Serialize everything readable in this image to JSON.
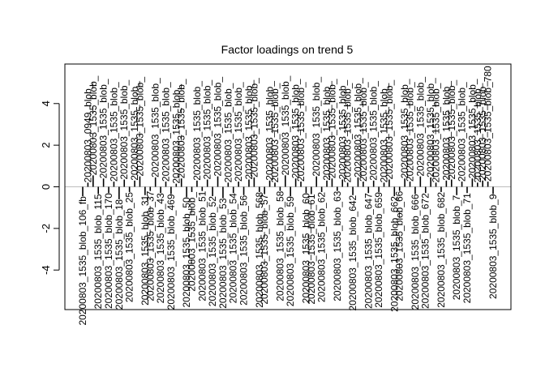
{
  "chart_data": {
    "type": "bar",
    "title": "Factor loadings on trend 5",
    "xlabel": "",
    "ylabel": "",
    "ylim": [
      -5.9,
      5.9
    ],
    "yticks": [
      -4,
      -2,
      0,
      2,
      4
    ],
    "zero_line": true,
    "grid": false,
    "label_template": "20200803_1535_blob_",
    "values": [
      -0.45,
      0.2,
      0.55,
      -0.35,
      0.4,
      -0.3,
      0.25,
      -0.6,
      0.35,
      -0.25,
      0.3,
      0.5,
      -0.4,
      -0.2,
      0.45,
      -0.3,
      0.25,
      -0.35,
      0.15,
      0.4,
      -0.5,
      -0.25,
      0.3,
      -0.2,
      0.35,
      -0.45,
      0.5,
      -0.55,
      0.2,
      -0.3,
      0.25,
      -0.4,
      0.35,
      0.45,
      -0.25,
      -0.35,
      0.3,
      0.2,
      -0.2,
      0.55,
      -0.45,
      0.4,
      0.25,
      -0.3,
      -0.35,
      0.5,
      -0.25,
      0.3,
      0.4,
      -0.2,
      0.35,
      0.2,
      -0.4,
      0.45,
      0.25,
      -0.3,
      0.3,
      -0.25,
      0.2,
      0.35,
      -0.45,
      -0.2,
      0.4,
      0.25,
      -0.35,
      0.5,
      -0.3,
      0.45,
      0.2,
      -0.25,
      0.3,
      0.35,
      -0.4,
      0.25,
      -0.3,
      0.4,
      0.2,
      0.3,
      0.25,
      -0.35
    ],
    "labels": [
      "20200803_1535_blob_106_fb",
      "20200803_0949_blob_",
      "20200803_1535_blob_",
      "20200803_1535_blob_115",
      "20200803_1535_blob_",
      "20200803_1535_blob_170",
      "20200803_1535_blob_",
      "20200803_1535_blob_18",
      "20200803_1535_blob_",
      "20200803_1535_blob_25",
      "20200803_1535_blob_",
      "20200803_1535_blob_",
      "20200803_1535_blob_31",
      "20200803_1535_blob_37",
      "20200803_1535_blob_",
      "20200803_1535_blob_43",
      "20200803_1535_blob_",
      "20200803_1535_blob_469",
      "20200803_1535_blob_",
      "20200803_1535_blob_",
      "20200803_1535_blob_50",
      "20200803_1535_blob_",
      "20200803_1535_blob_",
      "20200803_1535_blob_51",
      "20200803_1535_blob_",
      "20200803_1535_blob_52",
      "20200803_1535_blob_",
      "20200803_1535_blob_53",
      "20200803_1535_blob_",
      "20200803_1535_blob_54",
      "20200803_1535_blob_",
      "20200803_1535_blob_56",
      "20200803_1535_blob_",
      "20200803_1535_blob_",
      "20200803_1535_blob_568",
      "20200803_1535_blob_57",
      "20200803_1535_blob_",
      "20200803_1535_blob_",
      "20200803_1535_blob_58",
      "20200803_1535_blob_",
      "20200803_1535_blob_59",
      "20200803_1535_blob_",
      "20200803_1535_blob_",
      "20200803_1535_blob_60",
      "20200803_1535_blob_61",
      "20200803_1535_blob_",
      "20200803_1535_blob_62",
      "20200803_1535_blob_",
      "20200803_1535_blob_",
      "20200803_1535_blob_63",
      "20200803_1535_blob_",
      "20200803_1535_blob_",
      "20200803_1535_blob_642",
      "20200803_1535_blob_",
      "20200803_1535_blob_",
      "20200803_1535_blob_647",
      "20200803_1535_blob_",
      "20200803_1535_blob_659",
      "20200803_1535_blob_",
      "20200803_1535_blob_",
      "20200803_1535_blob_662",
      "20200803_1535_blob_66",
      "20200803_1535_blob_",
      "20200803_1535_blob_",
      "20200803_1535_blob_666",
      "20200803_1535_blob_",
      "20200803_1535_blob_672",
      "20200803_1535_blob_",
      "20200803_1535_blob_",
      "20200803_1535_blob_682",
      "20200803_1535_blob_",
      "20200803_1535_blob_",
      "20200803_1535_blob_7",
      "20200803_1535_blob_",
      "20200803_1535_blob_71",
      "20200803_1535_blob_",
      "20200803_1535_blob_",
      "20200803_1535_blob_",
      "20200803_1535_blob_780",
      "20200803_1535_blob_9"
    ]
  }
}
